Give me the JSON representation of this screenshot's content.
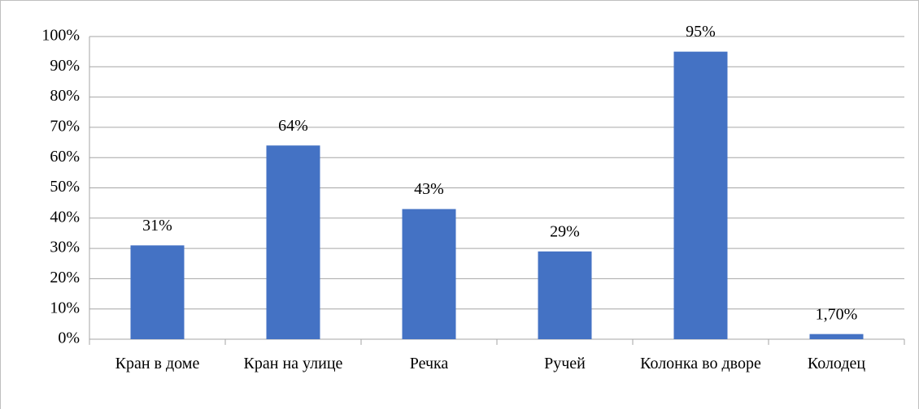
{
  "chart_data": {
    "type": "bar",
    "categories": [
      "Кран в доме",
      "Кран на улице",
      "Речка",
      "Ручей",
      "Колонка во дворе",
      "Колодец"
    ],
    "values": [
      31,
      64,
      43,
      29,
      95,
      1.7
    ],
    "value_labels": [
      "31%",
      "64%",
      "43%",
      "29%",
      "95%",
      "1,70%"
    ],
    "color": "#4472c4",
    "ylim": [
      0,
      100
    ],
    "yticks": [
      {
        "value": 0,
        "label": "0%"
      },
      {
        "value": 10,
        "label": "10%"
      },
      {
        "value": 20,
        "label": "20%"
      },
      {
        "value": 30,
        "label": "30%"
      },
      {
        "value": 40,
        "label": "40%"
      },
      {
        "value": 50,
        "label": "50%"
      },
      {
        "value": 60,
        "label": "60%"
      },
      {
        "value": 70,
        "label": "70%"
      },
      {
        "value": 80,
        "label": "80%"
      },
      {
        "value": 90,
        "label": "90%"
      },
      {
        "value": 100,
        "label": "100%"
      }
    ],
    "grid": true
  }
}
